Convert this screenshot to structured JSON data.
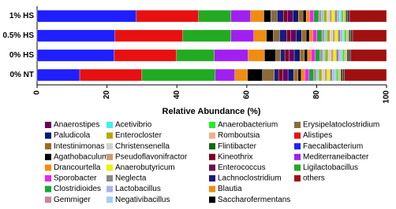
{
  "chart_data": {
    "type": "stacked-barh",
    "xlabel": "Relative Abundance (%)",
    "categories": [
      "1% HS",
      "0.5% HS",
      "0% HS",
      "0% NT"
    ],
    "xlim": [
      0,
      100
    ],
    "xticks": [
      0,
      20,
      40,
      60,
      80,
      100
    ],
    "series": [
      {
        "name": "Faecalibacterium",
        "color": "#1f1fff",
        "values": [
          28.4,
          22.3,
          22.1,
          12.2
        ]
      },
      {
        "name": "Alistipes",
        "color": "#e81010",
        "values": [
          17.8,
          19.4,
          17.8,
          17.8
        ]
      },
      {
        "name": "Ligilactobacillus",
        "color": "#22aa22",
        "values": [
          9.3,
          13.8,
          10.8,
          21.0
        ]
      },
      {
        "name": "Mediterraneibacter",
        "color": "#a020f0",
        "values": [
          5.6,
          6.5,
          9.7,
          5.6
        ]
      },
      {
        "name": "Blautia",
        "color": "#f08c10",
        "values": [
          3.8,
          3.6,
          4.7,
          3.6
        ]
      },
      {
        "name": "Saccharofermentans",
        "color": "#000000",
        "values": [
          2.0,
          2.0,
          3.2,
          4.3
        ]
      },
      {
        "name": "Erysipelatoclostridium",
        "color": "#8b6a3a",
        "values": [
          1.8,
          1.8,
          1.4,
          3.4
        ]
      },
      {
        "name": "Lachnoclostridium",
        "color": "#1a1a80",
        "values": [
          1.8,
          2.0,
          1.2,
          1.2
        ]
      },
      {
        "name": "Kineothrix",
        "color": "#800020",
        "values": [
          1.2,
          1.2,
          1.2,
          1.2
        ]
      },
      {
        "name": "Anaerostipes",
        "color": "#660066",
        "values": [
          1.5,
          1.5,
          1.5,
          1.5
        ]
      },
      {
        "name": "Paludicola",
        "color": "#0a1a70",
        "values": [
          1.6,
          1.6,
          1.6,
          1.6
        ]
      },
      {
        "name": "Intestinimonas",
        "color": "#9a6a2a",
        "values": [
          1.3,
          1.3,
          1.3,
          1.3
        ]
      },
      {
        "name": "Agathobaculum",
        "color": "#000000",
        "values": [
          0.9,
          0.9,
          0.9,
          0.9
        ]
      },
      {
        "name": "Drancourtella",
        "color": "#ff8800",
        "values": [
          1.0,
          1.0,
          1.0,
          1.0
        ]
      },
      {
        "name": "Sporobacter",
        "color": "#ee22ee",
        "values": [
          1.2,
          1.2,
          1.2,
          1.2
        ]
      },
      {
        "name": "Clostridioides",
        "color": "#11aa33",
        "values": [
          1.4,
          1.4,
          1.4,
          1.4
        ]
      },
      {
        "name": "Gemmiger",
        "color": "#d080a0",
        "values": [
          0.8,
          0.8,
          0.8,
          0.8
        ]
      },
      {
        "name": "Acetivibrio",
        "color": "#44eeee",
        "values": [
          0.6,
          0.6,
          0.6,
          0.6
        ]
      },
      {
        "name": "Enterocloster",
        "color": "#b8a800",
        "values": [
          0.9,
          0.9,
          0.9,
          0.9
        ]
      },
      {
        "name": "Christensenella",
        "color": "#d0d0d0",
        "values": [
          0.8,
          0.8,
          0.8,
          0.8
        ]
      },
      {
        "name": "Pseudoflavonifractor",
        "color": "#c8a070",
        "values": [
          0.7,
          0.7,
          0.7,
          0.7
        ]
      },
      {
        "name": "Anaerobutyricum",
        "color": "#f0f000",
        "values": [
          0.8,
          0.8,
          0.8,
          0.8
        ]
      },
      {
        "name": "Neglecta",
        "color": "#888888",
        "values": [
          0.7,
          0.7,
          0.7,
          0.7
        ]
      },
      {
        "name": "Lactobacillus",
        "color": "#b0b0e8",
        "values": [
          0.6,
          0.6,
          0.6,
          0.6
        ]
      },
      {
        "name": "Negativibacillus",
        "color": "#a0d0f0",
        "values": [
          0.5,
          0.5,
          0.5,
          0.5
        ]
      },
      {
        "name": "Anaerobacterium",
        "color": "#22ee22",
        "values": [
          0.6,
          0.6,
          0.6,
          0.6
        ]
      },
      {
        "name": "Romboutsia",
        "color": "#f0b090",
        "values": [
          0.7,
          0.7,
          0.7,
          0.7
        ]
      },
      {
        "name": "Flintibacter",
        "color": "#116611",
        "values": [
          0.6,
          0.6,
          0.6,
          0.6
        ]
      },
      {
        "name": "Enterococcus",
        "color": "#6a1050",
        "values": [
          0.5,
          0.5,
          0.5,
          0.5
        ]
      },
      {
        "name": "others",
        "color": "#a01010",
        "values": [
          10.6,
          9.7,
          10.2,
          12.0
        ]
      }
    ]
  }
}
